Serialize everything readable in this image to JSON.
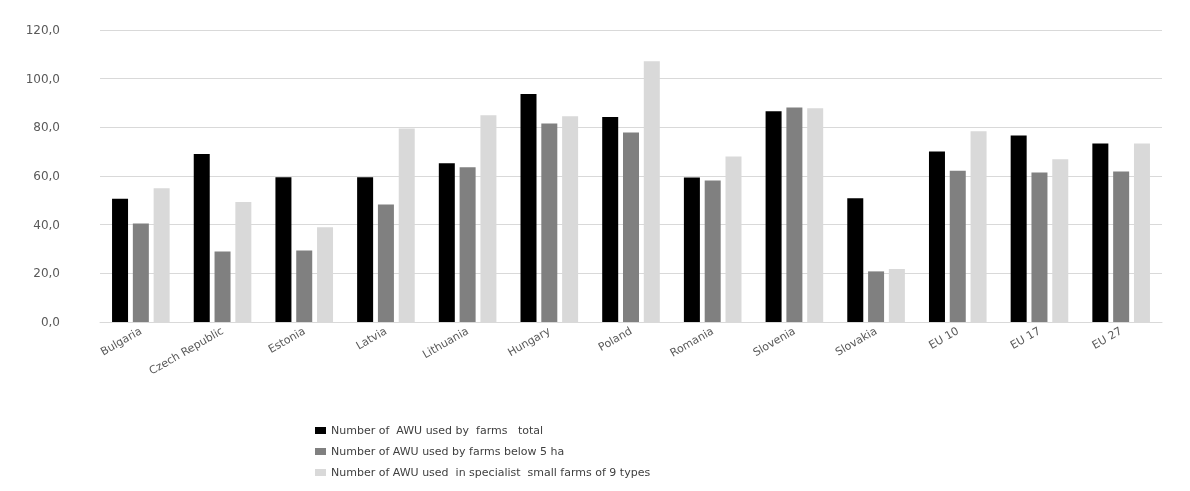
{
  "chart_data": {
    "type": "bar",
    "categories": [
      "Bulgaria",
      "Czech Republic",
      "Estonia",
      "Latvia",
      "Lithuania",
      "Hungary",
      "Poland",
      "Romania",
      "Slovenia",
      "Slovakia",
      "EU 10",
      "EU 17",
      "EU 27"
    ],
    "series": [
      {
        "name": "Number of  AWU used by  farms   total",
        "color": "#000000",
        "values": [
          50.7,
          69.0,
          59.5,
          59.5,
          65.2,
          93.7,
          84.2,
          59.4,
          86.6,
          50.9,
          70.1,
          76.6,
          73.4
        ]
      },
      {
        "name": "Number of AWU used by farms below 5 ha",
        "color": "#808080",
        "values": [
          40.5,
          29.0,
          29.4,
          48.3,
          63.6,
          81.6,
          77.9,
          58.2,
          88.2,
          20.8,
          62.2,
          61.4,
          61.9
        ]
      },
      {
        "name": "Number of AWU used  in specialist  small farms of 9 types",
        "color": "#d9d9d9",
        "values": [
          55.0,
          49.3,
          38.9,
          79.5,
          85.0,
          84.6,
          107.2,
          68.0,
          87.8,
          21.8,
          78.4,
          66.9,
          73.4
        ]
      }
    ],
    "ylim": [
      0,
      120
    ],
    "yticks": [
      {
        "value": 0,
        "label": "0,0"
      },
      {
        "value": 20,
        "label": "20,0"
      },
      {
        "value": 40,
        "label": "40,0"
      },
      {
        "value": 60,
        "label": "60,0"
      },
      {
        "value": 80,
        "label": "80,0"
      },
      {
        "value": 100,
        "label": "100,0"
      },
      {
        "value": 120,
        "label": "120,0"
      }
    ],
    "grid": "y",
    "legend": "bottom"
  }
}
